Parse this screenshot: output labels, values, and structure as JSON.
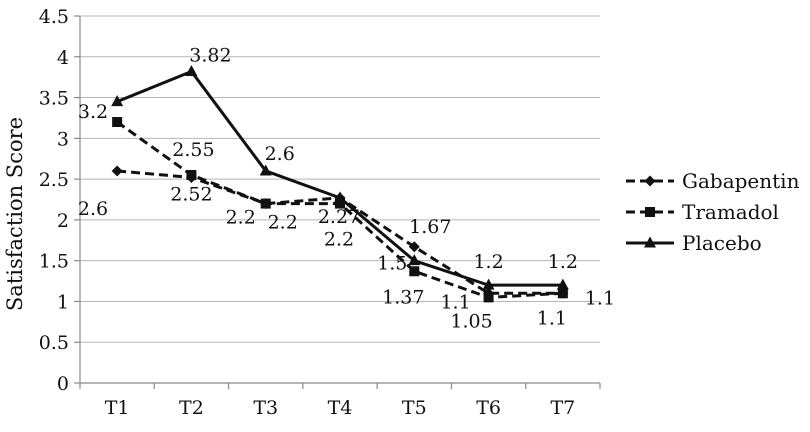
{
  "chart_data": {
    "type": "line",
    "title": "",
    "xlabel": "",
    "ylabel": "Satisfaction Score",
    "categories": [
      "T1",
      "T2",
      "T3",
      "T4",
      "T5",
      "T6",
      "T7"
    ],
    "ylim": [
      0,
      4.5
    ],
    "yticks": [
      "0",
      "0.5",
      "1",
      "1.5",
      "2",
      "2.5",
      "3",
      "3.5",
      "4",
      "4.5"
    ],
    "grid": true,
    "legend_position": "right",
    "series": [
      {
        "name": "Gabapentin",
        "values": [
          2.6,
          2.52,
          2.2,
          2.27,
          1.67,
          1.1,
          1.1
        ],
        "labels": [
          "2.6",
          "2.52",
          "2.2",
          "2.27",
          "1.67",
          "1.1",
          "1.1"
        ],
        "color": "#111111",
        "line_style": "dashed",
        "marker": "diamond"
      },
      {
        "name": "Tramadol",
        "values": [
          3.2,
          2.55,
          2.2,
          2.2,
          1.37,
          1.05,
          1.1
        ],
        "labels": [
          "3.2",
          "2.55",
          "2.2",
          "2.2",
          "1.37",
          "1.05",
          "1.1"
        ],
        "color": "#111111",
        "line_style": "dashed",
        "marker": "square"
      },
      {
        "name": "Placebo",
        "values": [
          3.45,
          3.82,
          2.6,
          2.27,
          1.5,
          1.2,
          1.2
        ],
        "labels": [
          "",
          "3.82",
          "2.6",
          "",
          "1.5",
          "1.2",
          "1.2"
        ],
        "color": "#111111",
        "line_style": "solid",
        "marker": "triangle"
      }
    ]
  }
}
